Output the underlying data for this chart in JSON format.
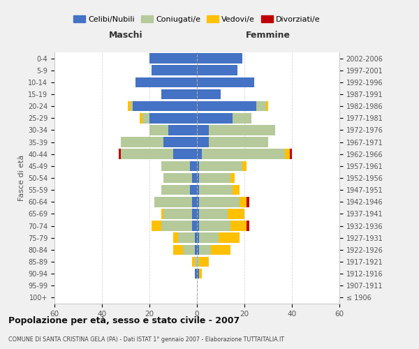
{
  "age_groups": [
    "100+",
    "95-99",
    "90-94",
    "85-89",
    "80-84",
    "75-79",
    "70-74",
    "65-69",
    "60-64",
    "55-59",
    "50-54",
    "45-49",
    "40-44",
    "35-39",
    "30-34",
    "25-29",
    "20-24",
    "15-19",
    "10-14",
    "5-9",
    "0-4"
  ],
  "birth_years": [
    "≤ 1906",
    "1907-1911",
    "1912-1916",
    "1917-1921",
    "1922-1926",
    "1927-1931",
    "1932-1936",
    "1937-1941",
    "1942-1946",
    "1947-1951",
    "1952-1956",
    "1957-1961",
    "1962-1966",
    "1967-1971",
    "1972-1976",
    "1977-1981",
    "1982-1986",
    "1987-1991",
    "1992-1996",
    "1997-2001",
    "2002-2006"
  ],
  "maschi": {
    "celibi": [
      0,
      0,
      1,
      0,
      1,
      1,
      2,
      2,
      2,
      3,
      2,
      3,
      10,
      14,
      12,
      20,
      27,
      15,
      26,
      19,
      20
    ],
    "coniugati": [
      0,
      0,
      0,
      1,
      5,
      7,
      13,
      12,
      16,
      12,
      12,
      12,
      22,
      18,
      8,
      3,
      1,
      0,
      0,
      0,
      0
    ],
    "vedovi": [
      0,
      0,
      0,
      1,
      4,
      2,
      4,
      1,
      0,
      0,
      0,
      0,
      0,
      0,
      0,
      1,
      1,
      0,
      0,
      0,
      0
    ],
    "divorziati": [
      0,
      0,
      0,
      0,
      0,
      0,
      0,
      0,
      0,
      0,
      0,
      0,
      1,
      0,
      0,
      0,
      0,
      0,
      0,
      0,
      0
    ]
  },
  "femmine": {
    "nubili": [
      0,
      0,
      1,
      0,
      1,
      1,
      1,
      1,
      1,
      1,
      1,
      1,
      2,
      5,
      5,
      15,
      25,
      10,
      24,
      17,
      19
    ],
    "coniugate": [
      0,
      0,
      0,
      1,
      5,
      8,
      13,
      12,
      17,
      14,
      13,
      18,
      35,
      25,
      28,
      8,
      4,
      0,
      0,
      0,
      0
    ],
    "vedove": [
      0,
      0,
      1,
      4,
      8,
      9,
      7,
      7,
      3,
      3,
      2,
      2,
      2,
      0,
      0,
      0,
      1,
      0,
      0,
      0,
      0
    ],
    "divorziate": [
      0,
      0,
      0,
      0,
      0,
      0,
      1,
      0,
      1,
      0,
      0,
      0,
      1,
      0,
      0,
      0,
      0,
      0,
      0,
      0,
      0
    ]
  },
  "colors": {
    "celibi_nubili": "#4472c4",
    "coniugati_e": "#b5c99a",
    "vedovi_e": "#ffc000",
    "divorziati_e": "#c00000"
  },
  "xlim": 60,
  "title": "Popolazione per età, sesso e stato civile - 2007",
  "subtitle": "COMUNE DI SANTA CRISTINA GELA (PA) - Dati ISTAT 1° gennaio 2007 - Elaborazione TUTTAITALIA.IT",
  "xlabel_left": "Maschi",
  "xlabel_right": "Femmine",
  "ylabel_left": "Fasce di età",
  "legend_labels": [
    "Celibi/Nubili",
    "Coniugati/e",
    "Vedovi/e",
    "Divorziati/e"
  ],
  "bg_color": "#f0f0f0",
  "plot_bg_color": "#ffffff"
}
